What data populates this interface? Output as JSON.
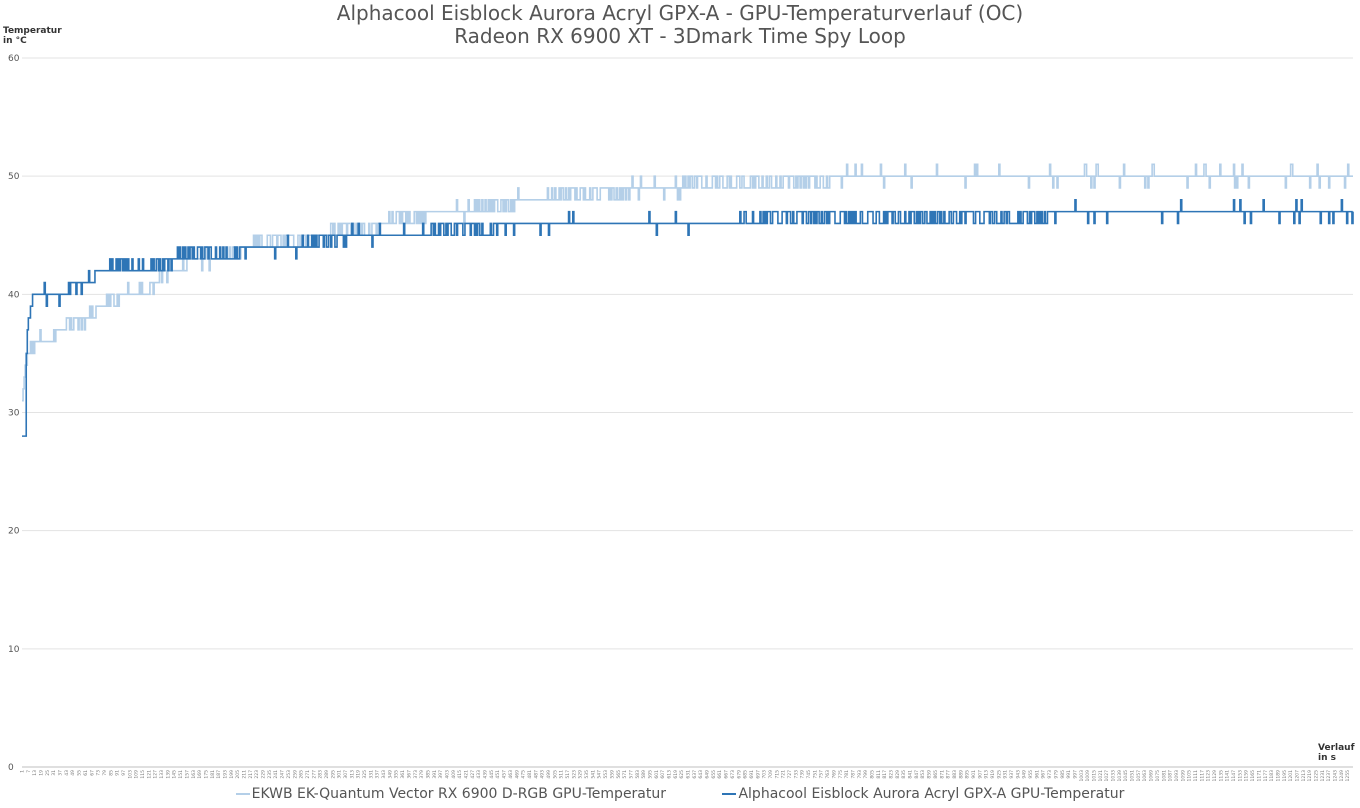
{
  "chart_data": {
    "type": "line",
    "title": [
      "Alphacool Eisblock Aurora Acryl GPX-A - GPU-Temperaturverlauf (OC)",
      "Radeon RX 6900 XT - 3Dmark Time Spy Loop"
    ],
    "ylabel": [
      "Temperatur",
      "in °C"
    ],
    "xlabel": [
      "Verlauf",
      "in s"
    ],
    "ylim": [
      0,
      60
    ],
    "xlim": [
      1,
      1260
    ],
    "yticks": [
      0,
      10,
      20,
      30,
      40,
      50,
      60
    ],
    "xtick_first": 1,
    "xtick_step": 6,
    "grid": true,
    "legend_position": "bottom",
    "series": [
      {
        "name": "EKWB EK-Quantum Vector RX 6900 D-RGB GPU-Temperatur",
        "color": "#b4cfe8",
        "points": [
          [
            1,
            31
          ],
          [
            4,
            34
          ],
          [
            7,
            35
          ],
          [
            13,
            36
          ],
          [
            25,
            36.5
          ],
          [
            37,
            37
          ],
          [
            49,
            37.5
          ],
          [
            61,
            38
          ],
          [
            73,
            39
          ],
          [
            85,
            39.5
          ],
          [
            97,
            40
          ],
          [
            109,
            40
          ],
          [
            121,
            40.5
          ],
          [
            133,
            41.5
          ],
          [
            145,
            42
          ],
          [
            157,
            42.5
          ],
          [
            169,
            43
          ],
          [
            181,
            43
          ],
          [
            193,
            43
          ],
          [
            205,
            43.5
          ],
          [
            217,
            44
          ],
          [
            229,
            44.5
          ],
          [
            241,
            44.5
          ],
          [
            253,
            44.5
          ],
          [
            265,
            44.5
          ],
          [
            277,
            45
          ],
          [
            289,
            45
          ],
          [
            301,
            45.5
          ],
          [
            313,
            45.5
          ],
          [
            325,
            45.5
          ],
          [
            337,
            46
          ],
          [
            349,
            46
          ],
          [
            361,
            46.5
          ],
          [
            373,
            46.5
          ],
          [
            385,
            47
          ],
          [
            397,
            47
          ],
          [
            409,
            47
          ],
          [
            421,
            47
          ],
          [
            433,
            47.5
          ],
          [
            445,
            47.5
          ],
          [
            457,
            47.5
          ],
          [
            469,
            48
          ],
          [
            481,
            48
          ],
          [
            493,
            48
          ],
          [
            505,
            48.5
          ],
          [
            517,
            48.5
          ],
          [
            529,
            48.5
          ],
          [
            541,
            48.5
          ],
          [
            553,
            48.5
          ],
          [
            565,
            48.5
          ],
          [
            577,
            49
          ],
          [
            589,
            49
          ],
          [
            601,
            49
          ],
          [
            613,
            49
          ],
          [
            625,
            49
          ],
          [
            637,
            49.5
          ],
          [
            649,
            49.5
          ],
          [
            661,
            49.5
          ],
          [
            673,
            49.5
          ],
          [
            685,
            49.5
          ],
          [
            697,
            49.5
          ],
          [
            709,
            49.5
          ],
          [
            721,
            49.5
          ],
          [
            733,
            49.5
          ],
          [
            745,
            49.5
          ],
          [
            757,
            49.5
          ],
          [
            769,
            49.5
          ],
          [
            781,
            50
          ],
          [
            793,
            50
          ],
          [
            805,
            50
          ],
          [
            817,
            50
          ],
          [
            829,
            50
          ],
          [
            841,
            50
          ],
          [
            853,
            50
          ],
          [
            865,
            50
          ],
          [
            877,
            50
          ],
          [
            889,
            50
          ],
          [
            901,
            50
          ],
          [
            913,
            50
          ],
          [
            925,
            50
          ],
          [
            937,
            50
          ],
          [
            949,
            50
          ],
          [
            961,
            50
          ],
          [
            973,
            50
          ],
          [
            985,
            50
          ],
          [
            997,
            50
          ],
          [
            1009,
            50
          ],
          [
            1021,
            50
          ],
          [
            1033,
            50
          ],
          [
            1045,
            50
          ],
          [
            1057,
            50
          ],
          [
            1069,
            50
          ],
          [
            1081,
            50
          ],
          [
            1093,
            50
          ],
          [
            1105,
            50
          ],
          [
            1117,
            50
          ],
          [
            1129,
            50
          ],
          [
            1141,
            50
          ],
          [
            1153,
            50
          ],
          [
            1165,
            50
          ],
          [
            1177,
            50
          ],
          [
            1189,
            50
          ],
          [
            1201,
            50
          ],
          [
            1213,
            50
          ],
          [
            1225,
            50
          ],
          [
            1237,
            50
          ],
          [
            1249,
            50
          ],
          [
            1260,
            50
          ]
        ]
      },
      {
        "name": "Alphacool Eisblock Aurora Acryl GPX-A GPU-Temperatur",
        "color": "#2e75b6",
        "points": [
          [
            1,
            28
          ],
          [
            4,
            28
          ],
          [
            5,
            35
          ],
          [
            7,
            38
          ],
          [
            13,
            40
          ],
          [
            25,
            40
          ],
          [
            37,
            40
          ],
          [
            49,
            40.5
          ],
          [
            61,
            41
          ],
          [
            73,
            42
          ],
          [
            85,
            42.5
          ],
          [
            97,
            42.5
          ],
          [
            109,
            42
          ],
          [
            121,
            42
          ],
          [
            133,
            42.5
          ],
          [
            145,
            43
          ],
          [
            157,
            43.5
          ],
          [
            169,
            43.5
          ],
          [
            181,
            43.5
          ],
          [
            193,
            43.5
          ],
          [
            205,
            43.5
          ],
          [
            217,
            44
          ],
          [
            229,
            44
          ],
          [
            241,
            44
          ],
          [
            253,
            44
          ],
          [
            265,
            44
          ],
          [
            277,
            44.5
          ],
          [
            289,
            44.5
          ],
          [
            301,
            44.5
          ],
          [
            313,
            45
          ],
          [
            325,
            45
          ],
          [
            337,
            45
          ],
          [
            349,
            45
          ],
          [
            361,
            45
          ],
          [
            373,
            45
          ],
          [
            385,
            45.5
          ],
          [
            397,
            45.5
          ],
          [
            409,
            45.5
          ],
          [
            421,
            45.5
          ],
          [
            433,
            45.5
          ],
          [
            445,
            45.5
          ],
          [
            457,
            46
          ],
          [
            469,
            46
          ],
          [
            481,
            46
          ],
          [
            493,
            46
          ],
          [
            505,
            46
          ],
          [
            517,
            46
          ],
          [
            529,
            46
          ],
          [
            541,
            46
          ],
          [
            553,
            46
          ],
          [
            565,
            46
          ],
          [
            577,
            46
          ],
          [
            589,
            46
          ],
          [
            601,
            46
          ],
          [
            613,
            46
          ],
          [
            625,
            46
          ],
          [
            637,
            46
          ],
          [
            649,
            46
          ],
          [
            661,
            46
          ],
          [
            673,
            46
          ],
          [
            685,
            46.5
          ],
          [
            697,
            46.5
          ],
          [
            709,
            46.5
          ],
          [
            721,
            46.5
          ],
          [
            733,
            46.5
          ],
          [
            745,
            46.5
          ],
          [
            757,
            46.5
          ],
          [
            769,
            46.5
          ],
          [
            781,
            46.5
          ],
          [
            793,
            46.5
          ],
          [
            805,
            46.5
          ],
          [
            817,
            46.5
          ],
          [
            829,
            46.5
          ],
          [
            841,
            46.5
          ],
          [
            853,
            46.5
          ],
          [
            865,
            46.5
          ],
          [
            877,
            46.5
          ],
          [
            889,
            46.5
          ],
          [
            901,
            46.5
          ],
          [
            913,
            46.5
          ],
          [
            925,
            46.5
          ],
          [
            937,
            46.5
          ],
          [
            949,
            46.5
          ],
          [
            961,
            46.5
          ],
          [
            973,
            46.5
          ],
          [
            985,
            47
          ],
          [
            997,
            47
          ],
          [
            1009,
            47
          ],
          [
            1021,
            47
          ],
          [
            1033,
            47
          ],
          [
            1045,
            47
          ],
          [
            1057,
            47
          ],
          [
            1069,
            47
          ],
          [
            1081,
            47
          ],
          [
            1093,
            47
          ],
          [
            1105,
            47
          ],
          [
            1117,
            47
          ],
          [
            1129,
            47
          ],
          [
            1141,
            47
          ],
          [
            1153,
            47
          ],
          [
            1165,
            47
          ],
          [
            1177,
            47
          ],
          [
            1189,
            47
          ],
          [
            1201,
            47
          ],
          [
            1213,
            47
          ],
          [
            1225,
            47
          ],
          [
            1237,
            47
          ],
          [
            1249,
            47
          ],
          [
            1260,
            47
          ]
        ]
      }
    ]
  }
}
